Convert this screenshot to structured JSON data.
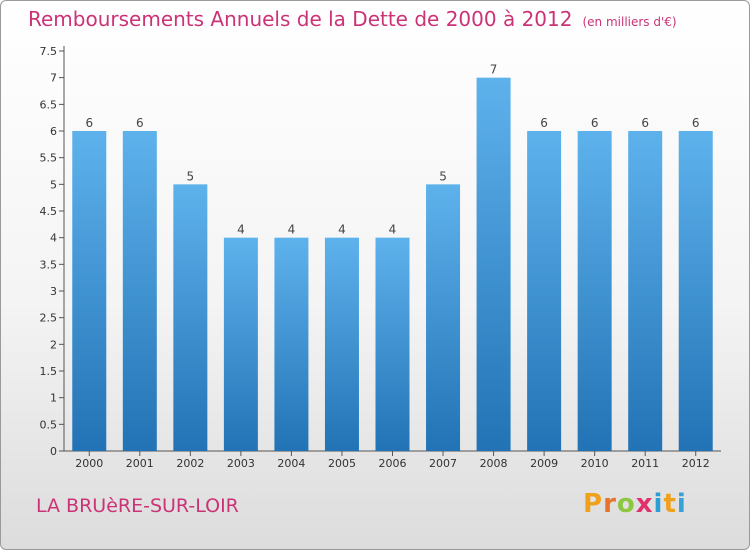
{
  "header": {
    "title": "Remboursements Annuels de la Dette de 2000 à 2012",
    "unit": "(en milliers d'€)"
  },
  "footer": {
    "commune": "LA BRUèRE-SUR-LOIR",
    "logo_letters": [
      "P",
      "r",
      "o",
      "x",
      "i",
      "t",
      "i"
    ]
  },
  "colors": {
    "title": "#cc3377",
    "bar_top": "#5eb2ec",
    "bar_bottom": "#2273b5",
    "logo": [
      "#f0a11c",
      "#e5742a",
      "#8dc63f",
      "#e1306c",
      "#2a9fd6",
      "#f0a11c",
      "#3aa0d8"
    ]
  },
  "chart_data": {
    "type": "bar",
    "categories": [
      "2000",
      "2001",
      "2002",
      "2003",
      "2004",
      "2005",
      "2006",
      "2007",
      "2008",
      "2009",
      "2010",
      "2011",
      "2012"
    ],
    "values": [
      6,
      6,
      5,
      4,
      4,
      4,
      4,
      5,
      7,
      6,
      6,
      6,
      6
    ],
    "data_labels": [
      "6",
      "6",
      "5",
      "4",
      "4",
      "4",
      "4",
      "5",
      "7",
      "6",
      "6",
      "6",
      "6"
    ],
    "ylim": [
      0,
      7.5
    ],
    "y_ticks": [
      0,
      0.5,
      1,
      1.5,
      2,
      2.5,
      3,
      3.5,
      4,
      4.5,
      5,
      5.5,
      6,
      6.5,
      7,
      7.5
    ],
    "y_tick_labels": [
      "0",
      "0.5",
      "1",
      "1.5",
      "2",
      "2.5",
      "3",
      "3.5",
      "4",
      "4.5",
      "5",
      "5.5",
      "6",
      "6.5",
      "7",
      "7.5"
    ],
    "grid": false,
    "legend": "none"
  }
}
